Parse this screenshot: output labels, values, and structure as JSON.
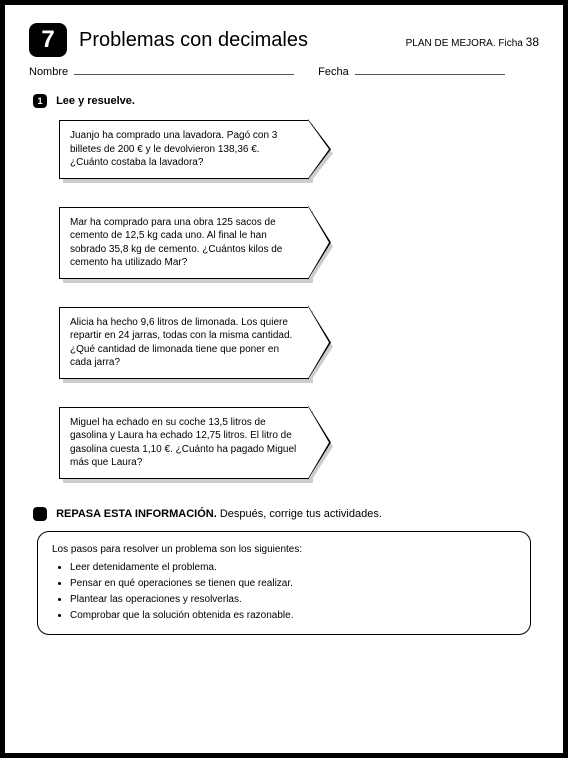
{
  "header": {
    "unit_number": "7",
    "title": "Problemas con decimales",
    "plan_label": "PLAN DE MEJORA. Ficha",
    "plan_number": "38"
  },
  "fields": {
    "nombre_label": "Nombre",
    "fecha_label": "Fecha"
  },
  "section1": {
    "marker": "1",
    "heading": "Lee y resuelve."
  },
  "problems": [
    {
      "text": "Juanjo ha comprado una lavadora. Pagó con 3 billetes de 200 € y le devolvieron 138,36 €. ¿Cuánto costaba la lavadora?"
    },
    {
      "text": "Mar ha comprado para una obra 125 sacos de cemento de 12,5 kg cada uno. Al final le han sobrado 35,8 kg de cemento. ¿Cuántos kilos de cemento ha utilizado Mar?"
    },
    {
      "text": "Alicia ha hecho 9,6 litros de limonada. Los quiere repartir en 24 jarras, todas con la misma cantidad. ¿Qué cantidad de limonada tiene que poner en cada jarra?"
    },
    {
      "text": "Miguel ha echado en su coche 13,5 litros de gasolina y Laura ha echado 12,75 litros. El litro de gasolina cuesta 1,10 €. ¿Cuánto ha pagado Miguel más que Laura?"
    }
  ],
  "repasa": {
    "heading_bold": "REPASA ESTA INFORMACIÓN.",
    "heading_rest": "Después, corrige tus actividades.",
    "intro": "Los pasos para resolver un problema son los siguientes:",
    "steps": [
      "Leer detenidamente el problema.",
      "Pensar en qué operaciones se tienen que realizar.",
      "Plantear las operaciones y resolverlas.",
      "Comprobar que la solución obtenida es razonable."
    ]
  },
  "style": {
    "page_bg": "#ffffff",
    "border_color": "#000000",
    "shadow_color": "#cccccc",
    "body_font_size_pt": 10,
    "title_font_size_pt": 20,
    "badge_bg": "#000000",
    "badge_fg": "#ffffff"
  }
}
